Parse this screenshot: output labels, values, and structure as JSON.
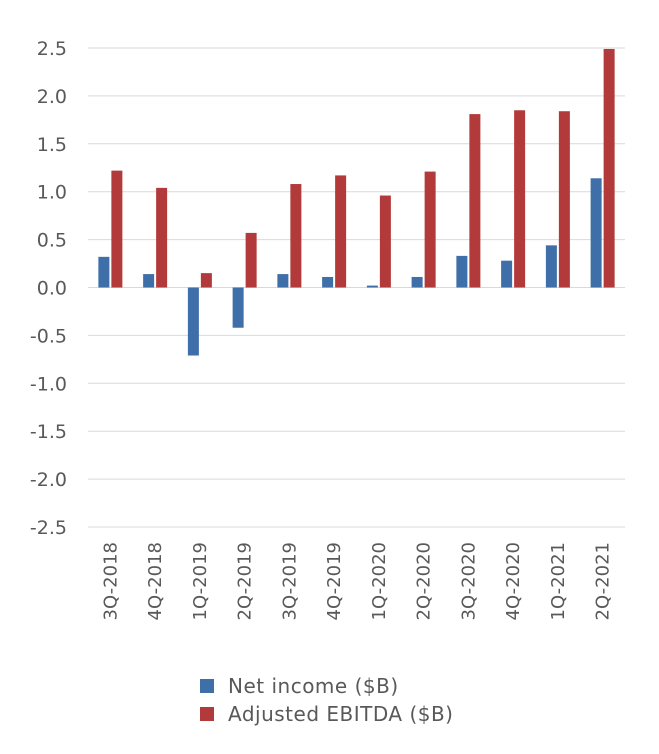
{
  "chart_data": {
    "type": "bar",
    "categories": [
      "3Q-2018",
      "4Q-2018",
      "1Q-2019",
      "2Q-2019",
      "3Q-2019",
      "4Q-2019",
      "1Q-2020",
      "2Q-2020",
      "3Q-2020",
      "4Q-2020",
      "1Q-2021",
      "2Q-2021"
    ],
    "series": [
      {
        "name": "Net income ($B)",
        "color": "#3f6fa8",
        "values": [
          0.32,
          0.14,
          -0.71,
          -0.42,
          0.14,
          0.11,
          0.02,
          0.11,
          0.33,
          0.28,
          0.44,
          1.14
        ]
      },
      {
        "name": "Adjusted EBITDA ($B)",
        "color": "#b23a3a",
        "values": [
          1.22,
          1.04,
          0.15,
          0.57,
          1.08,
          1.17,
          0.96,
          1.21,
          1.81,
          1.85,
          1.84,
          2.49
        ]
      }
    ],
    "y_ticks": [
      "2.5",
      "2.0",
      "1.5",
      "1.0",
      "0.5",
      "0.0",
      "-0.5",
      "-1.0",
      "-1.5",
      "-2.0",
      "-2.5"
    ],
    "ylim": [
      -2.5,
      2.5
    ],
    "grid": true,
    "legend_position": "bottom"
  }
}
